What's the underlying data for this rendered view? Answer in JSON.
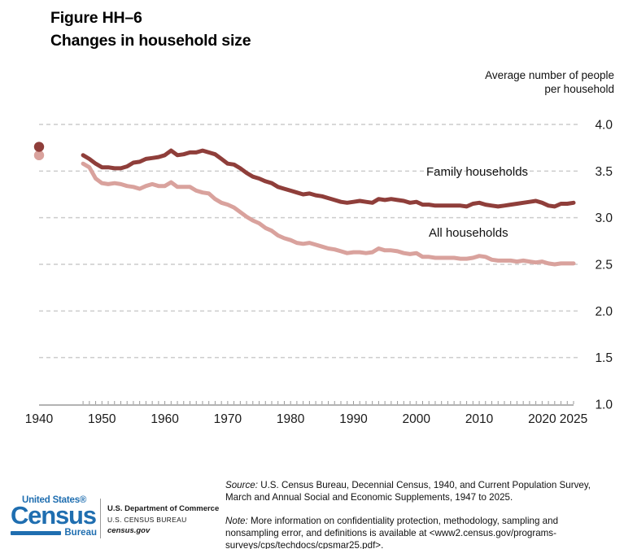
{
  "title": {
    "line1": "Figure HH–6",
    "line2": "Changes in household size"
  },
  "y_axis_title_line1": "Average number of people",
  "y_axis_title_line2": "per household",
  "series_labels": {
    "family": "Family households",
    "all": "All households"
  },
  "colors": {
    "family_line": "#8F3E3A",
    "all_line": "#D9A29D",
    "gridline": "#CCCCCC",
    "axis_line": "#9A9A9A",
    "tick": "#999999",
    "text": "#1A1A1A",
    "logo_blue": "#1F6EB0"
  },
  "chart_data": {
    "type": "line",
    "title": "Changes in household size",
    "xlabel": "",
    "ylabel": "Average number of people per household",
    "xlim": [
      1940,
      2025
    ],
    "ylim": [
      1.0,
      4.0
    ],
    "grid": "horizontal-dashed",
    "legend_position": "inline-labels",
    "x_tick_years": [
      1940,
      1950,
      1960,
      1970,
      1980,
      1990,
      2000,
      2010,
      2020,
      2025
    ],
    "y_tick_labels": [
      "4.0",
      "3.5",
      "3.0",
      "2.5",
      "2.0",
      "1.5",
      "1.0"
    ],
    "isolated_points": [
      {
        "series": "Family households",
        "year": 1940,
        "value": 3.76
      },
      {
        "series": "All households",
        "year": 1940,
        "value": 3.67
      }
    ],
    "series": [
      {
        "name": "Family households",
        "color": "#8F3E3A",
        "x_range": [
          1947,
          2025
        ],
        "values": [
          3.67,
          3.63,
          3.58,
          3.54,
          3.54,
          3.53,
          3.53,
          3.55,
          3.59,
          3.6,
          3.63,
          3.64,
          3.65,
          3.67,
          3.72,
          3.67,
          3.68,
          3.7,
          3.7,
          3.72,
          3.7,
          3.68,
          3.63,
          3.58,
          3.57,
          3.53,
          3.48,
          3.44,
          3.42,
          3.39,
          3.37,
          3.33,
          3.31,
          3.29,
          3.27,
          3.25,
          3.26,
          3.24,
          3.23,
          3.21,
          3.19,
          3.17,
          3.16,
          3.17,
          3.18,
          3.17,
          3.16,
          3.2,
          3.19,
          3.2,
          3.19,
          3.18,
          3.16,
          3.17,
          3.14,
          3.14,
          3.13,
          3.13,
          3.13,
          3.13,
          3.13,
          3.12,
          3.15,
          3.16,
          3.14,
          3.13,
          3.12,
          3.13,
          3.14,
          3.15,
          3.16,
          3.17,
          3.18,
          3.16,
          3.13,
          3.12,
          3.15,
          3.15,
          3.16
        ]
      },
      {
        "name": "All households",
        "color": "#D9A29D",
        "x_range": [
          1947,
          2025
        ],
        "values": [
          3.58,
          3.54,
          3.42,
          3.37,
          3.36,
          3.37,
          3.36,
          3.34,
          3.33,
          3.31,
          3.34,
          3.36,
          3.34,
          3.34,
          3.38,
          3.33,
          3.33,
          3.33,
          3.29,
          3.27,
          3.26,
          3.2,
          3.16,
          3.14,
          3.11,
          3.06,
          3.01,
          2.97,
          2.94,
          2.89,
          2.86,
          2.81,
          2.78,
          2.76,
          2.73,
          2.72,
          2.73,
          2.71,
          2.69,
          2.67,
          2.66,
          2.64,
          2.62,
          2.63,
          2.63,
          2.62,
          2.63,
          2.67,
          2.65,
          2.65,
          2.64,
          2.62,
          2.61,
          2.62,
          2.58,
          2.58,
          2.57,
          2.57,
          2.57,
          2.57,
          2.56,
          2.56,
          2.57,
          2.59,
          2.58,
          2.55,
          2.54,
          2.54,
          2.54,
          2.53,
          2.54,
          2.53,
          2.52,
          2.53,
          2.51,
          2.5,
          2.51,
          2.51,
          2.51
        ]
      }
    ]
  },
  "footer": {
    "source_label": "Source:",
    "source_text": " U.S. Census Bureau, Decennial Census, 1940, and Current Population Survey, March and Annual Social and Economic Supplements, 1947 to 2025.",
    "note_label": "Note:",
    "note_text": " More information on confidentiality protection, methodology, sampling and nonsampling error, and definitions is available at <www2.census.gov/programs-surveys/cps/techdocs/cpsmar25.pdf>.",
    "logo": {
      "united_states": "United States®",
      "census": "Census",
      "bureau": "Bureau"
    },
    "dept_line1": "U.S. Department of Commerce",
    "dept_line2": "U.S. CENSUS BUREAU",
    "dept_line3": "census.gov"
  }
}
